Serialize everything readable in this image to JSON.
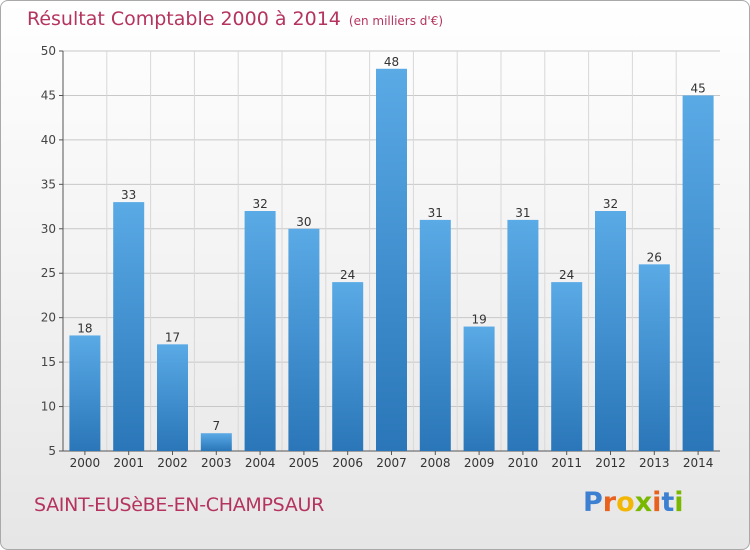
{
  "title": "Résultat Comptable 2000 à 2014",
  "subtitle": "(en milliers d'€)",
  "commune": "SAINT-EUSèBE-EN-CHAMPSAUR",
  "logo": {
    "letters": [
      "P",
      "r",
      "o",
      "x",
      "i",
      "t",
      "i"
    ],
    "colors": [
      "#3d7fd1",
      "#e8611d",
      "#f2b705",
      "#7ab800",
      "#e8611d",
      "#3d7fd1",
      "#7ab800"
    ]
  },
  "colors": {
    "bar_top": "#5aaae6",
    "bar_bottom": "#2a76b8",
    "title": "#b5345e",
    "grid": "#c8c8c8"
  },
  "chart_data": {
    "type": "bar",
    "categories": [
      "2000",
      "2001",
      "2002",
      "2003",
      "2004",
      "2005",
      "2006",
      "2007",
      "2008",
      "2009",
      "2010",
      "2011",
      "2012",
      "2013",
      "2014"
    ],
    "values": [
      18,
      33,
      17,
      7,
      32,
      30,
      24,
      48,
      31,
      19,
      31,
      24,
      32,
      26,
      45
    ],
    "ylim": [
      5,
      50
    ],
    "yticks": [
      5,
      10,
      15,
      20,
      25,
      30,
      35,
      40,
      45,
      50
    ],
    "grid": true
  }
}
